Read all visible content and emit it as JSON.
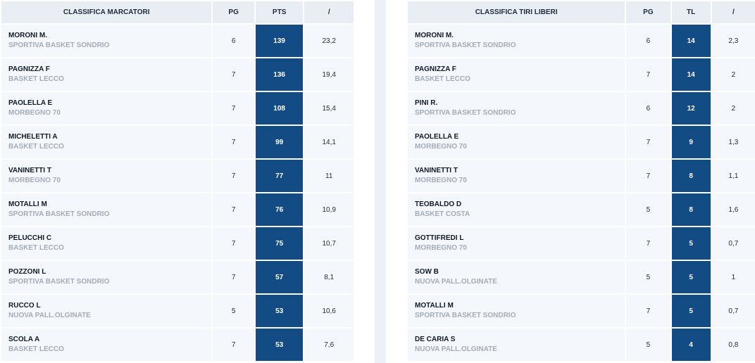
{
  "scorers": {
    "headers": {
      "title": "CLASSIFICA MARCATORI",
      "pg": "PG",
      "pts": "PTS",
      "avg": "/"
    },
    "rows": [
      {
        "name": "MORONI M.",
        "team": "SPORTIVA BASKET SONDRIO",
        "pg": "6",
        "pts": "139",
        "avg": "23,2"
      },
      {
        "name": "PAGNIZZA F",
        "team": "BASKET LECCO",
        "pg": "7",
        "pts": "136",
        "avg": "19,4"
      },
      {
        "name": "PAOLELLA E",
        "team": "MORBEGNO 70",
        "pg": "7",
        "pts": "108",
        "avg": "15,4"
      },
      {
        "name": "MICHELETTI A",
        "team": "BASKET LECCO",
        "pg": "7",
        "pts": "99",
        "avg": "14,1"
      },
      {
        "name": "VANINETTI T",
        "team": "MORBEGNO 70",
        "pg": "7",
        "pts": "77",
        "avg": "11"
      },
      {
        "name": "MOTALLI M",
        "team": "SPORTIVA BASKET SONDRIO",
        "pg": "7",
        "pts": "76",
        "avg": "10,9"
      },
      {
        "name": "PELUCCHI C",
        "team": "BASKET LECCO",
        "pg": "7",
        "pts": "75",
        "avg": "10,7"
      },
      {
        "name": "POZZONI L",
        "team": "SPORTIVA BASKET SONDRIO",
        "pg": "7",
        "pts": "57",
        "avg": "8,1"
      },
      {
        "name": "RUCCO L",
        "team": "NUOVA PALL.OLGINATE",
        "pg": "5",
        "pts": "53",
        "avg": "10,6"
      },
      {
        "name": "SCOLA A",
        "team": "BASKET LECCO",
        "pg": "7",
        "pts": "53",
        "avg": "7,6"
      }
    ]
  },
  "free_throws": {
    "headers": {
      "title": "CLASSIFICA TIRI LIBERI",
      "pg": "PG",
      "tl": "TL",
      "avg": "/"
    },
    "rows": [
      {
        "name": "MORONI M.",
        "team": "SPORTIVA BASKET SONDRIO",
        "pg": "6",
        "tl": "14",
        "avg": "2,3"
      },
      {
        "name": "PAGNIZZA F",
        "team": "BASKET LECCO",
        "pg": "7",
        "tl": "14",
        "avg": "2"
      },
      {
        "name": "PINI R.",
        "team": "SPORTIVA BASKET SONDRIO",
        "pg": "6",
        "tl": "12",
        "avg": "2"
      },
      {
        "name": "PAOLELLA E",
        "team": "MORBEGNO 70",
        "pg": "7",
        "tl": "9",
        "avg": "1,3"
      },
      {
        "name": "VANINETTI T",
        "team": "MORBEGNO 70",
        "pg": "7",
        "tl": "8",
        "avg": "1,1"
      },
      {
        "name": "TEOBALDO D",
        "team": "BASKET COSTA",
        "pg": "5",
        "tl": "8",
        "avg": "1,6"
      },
      {
        "name": "GOTTIFREDI L",
        "team": "MORBEGNO 70",
        "pg": "7",
        "tl": "5",
        "avg": "0,7"
      },
      {
        "name": "SOW B",
        "team": "NUOVA PALL.OLGINATE",
        "pg": "5",
        "tl": "5",
        "avg": "1"
      },
      {
        "name": "MOTALLI M",
        "team": "SPORTIVA BASKET SONDRIO",
        "pg": "7",
        "tl": "5",
        "avg": "0,7"
      },
      {
        "name": "DE CARIA S",
        "team": "NUOVA PALL.OLGINATE",
        "pg": "5",
        "tl": "4",
        "avg": "0,8"
      }
    ]
  },
  "colors": {
    "header_bg": "#e9eef5",
    "row_bg": "#f4f7fb",
    "highlight_bg": "#134b85",
    "team_text": "#a3acba",
    "divider": "#edf0f4"
  }
}
